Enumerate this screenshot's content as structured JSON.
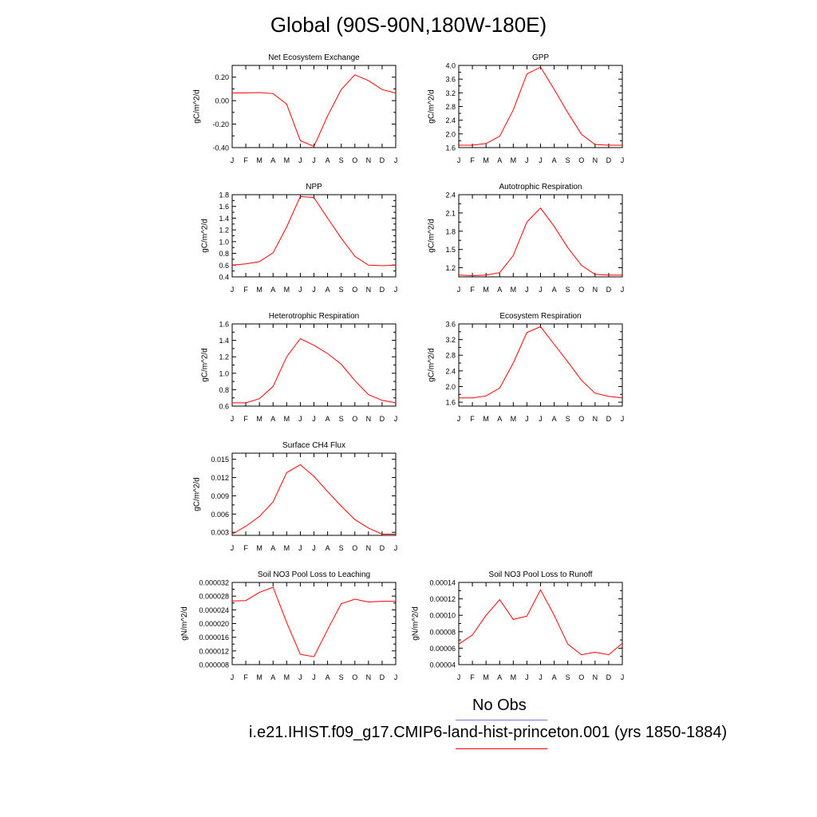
{
  "title": "Global (90S-90N,180W-180E)",
  "legend": {
    "obs": "No Obs",
    "case": "i.e21.IHIST.f09_g17.CMIP6-land-hist-princeton.001 (yrs 1850-1884)",
    "obs_color": "#7777ee",
    "case_color": "#ff0000"
  },
  "line_color": "#ff0000",
  "chart_data": [
    {
      "type": "line",
      "title": "Net Ecosystem Exchange",
      "ylabel": "gC/m^2/d",
      "categories": [
        "J",
        "F",
        "M",
        "A",
        "M",
        "J",
        "J",
        "A",
        "S",
        "O",
        "N",
        "D",
        "J"
      ],
      "ylim": [
        -0.4,
        0.3
      ],
      "yticks": [
        "0.20",
        "0.00",
        "-0.20",
        "-0.40"
      ],
      "ytick_values": [
        0.2,
        0.0,
        -0.2,
        -0.4
      ],
      "values": [
        0.065,
        0.066,
        0.069,
        0.06,
        -0.03,
        -0.34,
        -0.39,
        -0.13,
        0.095,
        0.22,
        0.17,
        0.095,
        0.065
      ]
    },
    {
      "type": "line",
      "title": "GPP",
      "ylabel": "gC/m^2/d",
      "categories": [
        "J",
        "F",
        "M",
        "A",
        "M",
        "J",
        "J",
        "A",
        "S",
        "O",
        "N",
        "D",
        "J"
      ],
      "ylim": [
        1.6,
        4.0
      ],
      "yticks": [
        "4.0",
        "3.6",
        "3.2",
        "2.8",
        "2.4",
        "2.0",
        "1.6"
      ],
      "ytick_values": [
        4.0,
        3.6,
        3.2,
        2.8,
        2.4,
        2.0,
        1.6
      ],
      "values": [
        1.67,
        1.67,
        1.72,
        1.93,
        2.7,
        3.75,
        3.95,
        3.3,
        2.62,
        1.99,
        1.69,
        1.67,
        1.67
      ]
    },
    {
      "type": "line",
      "title": "NPP",
      "ylabel": "gC/m^2/d",
      "categories": [
        "J",
        "F",
        "M",
        "A",
        "M",
        "J",
        "J",
        "A",
        "S",
        "O",
        "N",
        "D",
        "J"
      ],
      "ylim": [
        0.4,
        1.8
      ],
      "yticks": [
        "1.8",
        "1.6",
        "1.4",
        "1.2",
        "1.0",
        "0.8",
        "0.6",
        "0.4"
      ],
      "ytick_values": [
        1.8,
        1.6,
        1.4,
        1.2,
        1.0,
        0.8,
        0.6,
        0.4
      ],
      "values": [
        0.6,
        0.62,
        0.66,
        0.81,
        1.25,
        1.77,
        1.75,
        1.4,
        1.06,
        0.75,
        0.6,
        0.59,
        0.6
      ]
    },
    {
      "type": "line",
      "title": "Autotrophic Respiration",
      "ylabel": "gC/m^2/d",
      "categories": [
        "J",
        "F",
        "M",
        "A",
        "M",
        "J",
        "J",
        "A",
        "S",
        "O",
        "N",
        "D",
        "J"
      ],
      "ylim": [
        1.05,
        2.4
      ],
      "yticks": [
        "2.4",
        "2.1",
        "1.8",
        "1.5",
        "1.2"
      ],
      "ytick_values": [
        2.4,
        2.1,
        1.8,
        1.5,
        1.2
      ],
      "values": [
        1.08,
        1.07,
        1.08,
        1.12,
        1.4,
        1.95,
        2.18,
        1.88,
        1.53,
        1.24,
        1.09,
        1.08,
        1.08
      ]
    },
    {
      "type": "line",
      "title": "Heterotrophic Respiration",
      "ylabel": "gC/m^2/d",
      "categories": [
        "J",
        "F",
        "M",
        "A",
        "M",
        "J",
        "J",
        "A",
        "S",
        "O",
        "N",
        "D",
        "J"
      ],
      "ylim": [
        0.6,
        1.6
      ],
      "yticks": [
        "1.6",
        "1.4",
        "1.2",
        "1.0",
        "0.8",
        "0.6"
      ],
      "ytick_values": [
        1.6,
        1.4,
        1.2,
        1.0,
        0.8,
        0.6
      ],
      "values": [
        0.64,
        0.64,
        0.69,
        0.84,
        1.2,
        1.42,
        1.34,
        1.24,
        1.11,
        0.91,
        0.74,
        0.67,
        0.64
      ]
    },
    {
      "type": "line",
      "title": "Ecosystem Respiration",
      "ylabel": "gC/m^2/d",
      "categories": [
        "J",
        "F",
        "M",
        "A",
        "M",
        "J",
        "J",
        "A",
        "S",
        "O",
        "N",
        "D",
        "J"
      ],
      "ylim": [
        1.5,
        3.6
      ],
      "yticks": [
        "3.6",
        "3.2",
        "2.8",
        "2.4",
        "2.0",
        "1.6"
      ],
      "ytick_values": [
        3.6,
        3.2,
        2.8,
        2.4,
        2.0,
        1.6
      ],
      "values": [
        1.71,
        1.71,
        1.76,
        1.96,
        2.6,
        3.38,
        3.53,
        3.08,
        2.63,
        2.16,
        1.83,
        1.75,
        1.71
      ]
    },
    {
      "type": "line",
      "title": "Surface CH4 Flux",
      "ylabel": "gC/m^2/d",
      "categories": [
        "J",
        "F",
        "M",
        "A",
        "M",
        "J",
        "J",
        "A",
        "S",
        "O",
        "N",
        "D",
        "J"
      ],
      "ylim": [
        0.0025,
        0.016
      ],
      "yticks": [
        "0.015",
        "0.012",
        "0.009",
        "0.006",
        "0.003"
      ],
      "ytick_values": [
        0.015,
        0.012,
        0.009,
        0.006,
        0.003
      ],
      "values": [
        0.0027,
        0.004,
        0.0056,
        0.008,
        0.0128,
        0.0141,
        0.0122,
        0.0097,
        0.0073,
        0.0051,
        0.0037,
        0.0027,
        0.0027
      ]
    },
    {
      "type": "line",
      "title": "Soil NO3 Pool Loss to Leaching",
      "ylabel": "gN/m^2/d",
      "categories": [
        "J",
        "F",
        "M",
        "A",
        "M",
        "J",
        "J",
        "A",
        "S",
        "O",
        "N",
        "D",
        "J"
      ],
      "ylim": [
        8e-06,
        3.2e-05
      ],
      "yticks": [
        "0.000032",
        "0.000028",
        "0.000024",
        "0.000020",
        "0.000016",
        "0.000012",
        "0.000008"
      ],
      "ytick_values": [
        3.2e-05,
        2.8e-05,
        2.4e-05,
        2e-05,
        1.6e-05,
        1.2e-05,
        8e-06
      ],
      "values": [
        2.66e-05,
        2.67e-05,
        2.91e-05,
        3.06e-05,
        2.03e-05,
        1.1e-05,
        1.03e-05,
        1.82e-05,
        2.58e-05,
        2.71e-05,
        2.63e-05,
        2.65e-05,
        2.65e-05
      ]
    },
    {
      "type": "line",
      "title": "Soil NO3 Pool Loss to Runoff",
      "ylabel": "gN/m^2/d",
      "categories": [
        "J",
        "F",
        "M",
        "A",
        "M",
        "J",
        "J",
        "A",
        "S",
        "O",
        "N",
        "D",
        "J"
      ],
      "ylim": [
        4e-05,
        0.00014
      ],
      "yticks": [
        "0.00014",
        "0.00012",
        "0.00010",
        "0.00008",
        "0.00006",
        "0.00004"
      ],
      "ytick_values": [
        0.00014,
        0.00012,
        0.0001,
        8e-05,
        6e-05,
        4e-05
      ],
      "values": [
        6.5e-05,
        7.6e-05,
        0.0001,
        0.000119,
        9.5e-05,
        9.9e-05,
        0.000131,
        0.0001,
        6.5e-05,
        5.2e-05,
        5.5e-05,
        5.2e-05,
        6.6e-05
      ]
    }
  ]
}
